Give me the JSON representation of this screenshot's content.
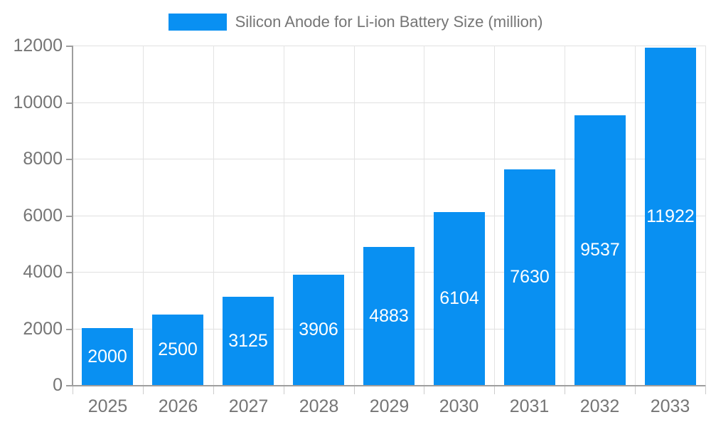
{
  "legend": {
    "label": "Silicon Anode for Li-ion Battery Size (million)",
    "swatch_color": "#0990f2"
  },
  "chart_data": {
    "type": "bar",
    "title": "Silicon Anode for Li-ion Battery Size (million)",
    "series_name": "Silicon Anode for Li-ion Battery Size (million)",
    "categories": [
      "2025",
      "2026",
      "2027",
      "2028",
      "2029",
      "2030",
      "2031",
      "2032",
      "2033"
    ],
    "values": [
      2000,
      2500,
      3125,
      3906,
      4883,
      6104,
      7630,
      9537,
      11922
    ],
    "value_labels": [
      "2000",
      "2500",
      "3125",
      "3906",
      "4883",
      "6104",
      "7630",
      "9537",
      "11922"
    ],
    "xlabel": "",
    "ylabel": "",
    "ylim": [
      0,
      12000
    ],
    "yticks": [
      0,
      2000,
      4000,
      6000,
      8000,
      10000,
      12000
    ],
    "grid": true,
    "legend_position": "top-center",
    "bar_color": "#0990f2",
    "value_label_color": "#ffffff",
    "axis_label_color": "#757575",
    "axis_line_color": "#9e9e9e",
    "gridline_color": "#e0e0e0"
  }
}
